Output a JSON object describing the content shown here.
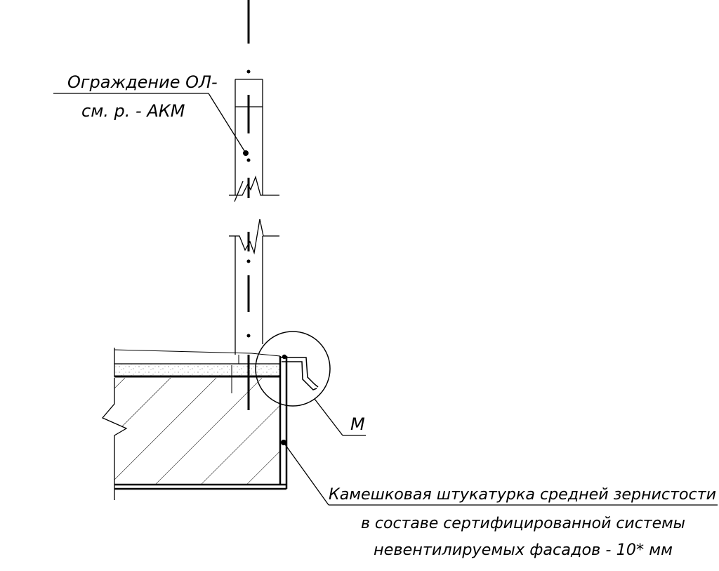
{
  "labels": {
    "fence_line1": "Ограждение ОЛ-",
    "fence_line2": "см. р. - АКМ",
    "detail_marker": "М",
    "plaster_line1": "Камешковая штукатурка средней зернистости",
    "plaster_line2": "в составе сертифицированной системы",
    "plaster_line3": "невентилируемых фасадов - 10* мм"
  },
  "colors": {
    "line": "#000000",
    "background": "#ffffff",
    "speckle": "#888888"
  }
}
